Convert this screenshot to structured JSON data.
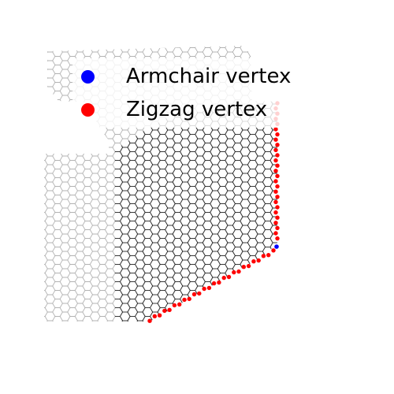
{
  "legend": {
    "armchair_label": "Armchair vertex",
    "zigzag_label": "Zigzag vertex"
  },
  "colors": {
    "armchair": "#0000ff",
    "zigzag": "#ff0000",
    "lattice_faint": "#aaaaaa",
    "lattice_dark": "#000000"
  }
}
